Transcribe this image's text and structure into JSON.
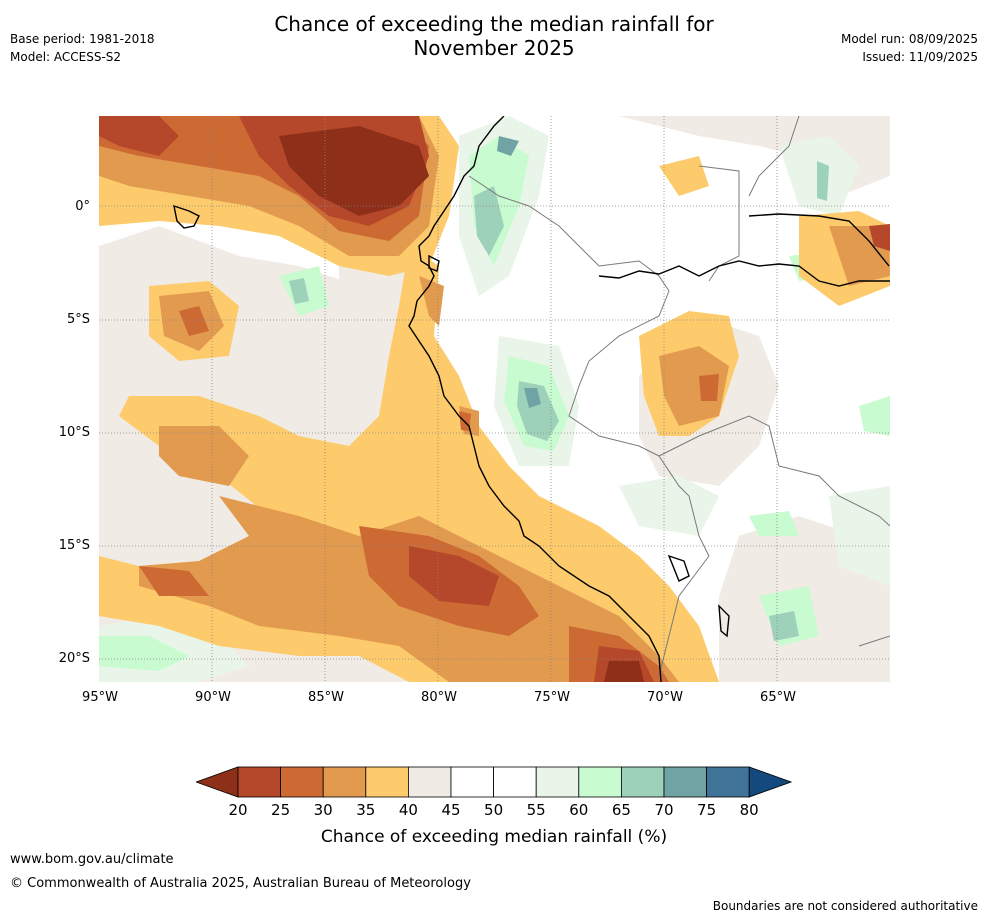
{
  "header": {
    "base_period": "Base period: 1981-2018",
    "model": "Model: ACCESS-S2",
    "model_run": "Model run: 08/09/2025",
    "issued": "Issued: 11/09/2025",
    "title_line1": "Chance of exceeding the median rainfall for",
    "title_line2": "November 2025"
  },
  "map": {
    "lat_ticks": [
      "0°",
      "5°S",
      "10°S",
      "15°S",
      "20°S"
    ],
    "lon_ticks": [
      "95°W",
      "90°W",
      "85°W",
      "80°W",
      "75°W",
      "70°W",
      "65°W"
    ],
    "lon_range": [
      -95,
      -60
    ],
    "lat_range": [
      -21,
      4
    ]
  },
  "colorbar": {
    "labels": [
      "20",
      "25",
      "30",
      "35",
      "40",
      "45",
      "50",
      "55",
      "60",
      "65",
      "70",
      "75",
      "80"
    ],
    "colors": [
      "#8e2f19",
      "#b5472a",
      "#cd6a34",
      "#e29a4f",
      "#fdcb6c",
      "#f0ebe5",
      "#ffffff",
      "#ffffff",
      "#e9f5e9",
      "#c9fbd0",
      "#9dd1b9",
      "#6fa3a4",
      "#3f7397",
      "#13497c"
    ],
    "title": "Chance of exceeding median rainfall (%)"
  },
  "footer": {
    "url": "www.bom.gov.au/climate",
    "copyright": "© Commonwealth of Australia 2025, Australian Bureau of Meteorology",
    "disclaimer": "Boundaries are not considered authoritative"
  }
}
